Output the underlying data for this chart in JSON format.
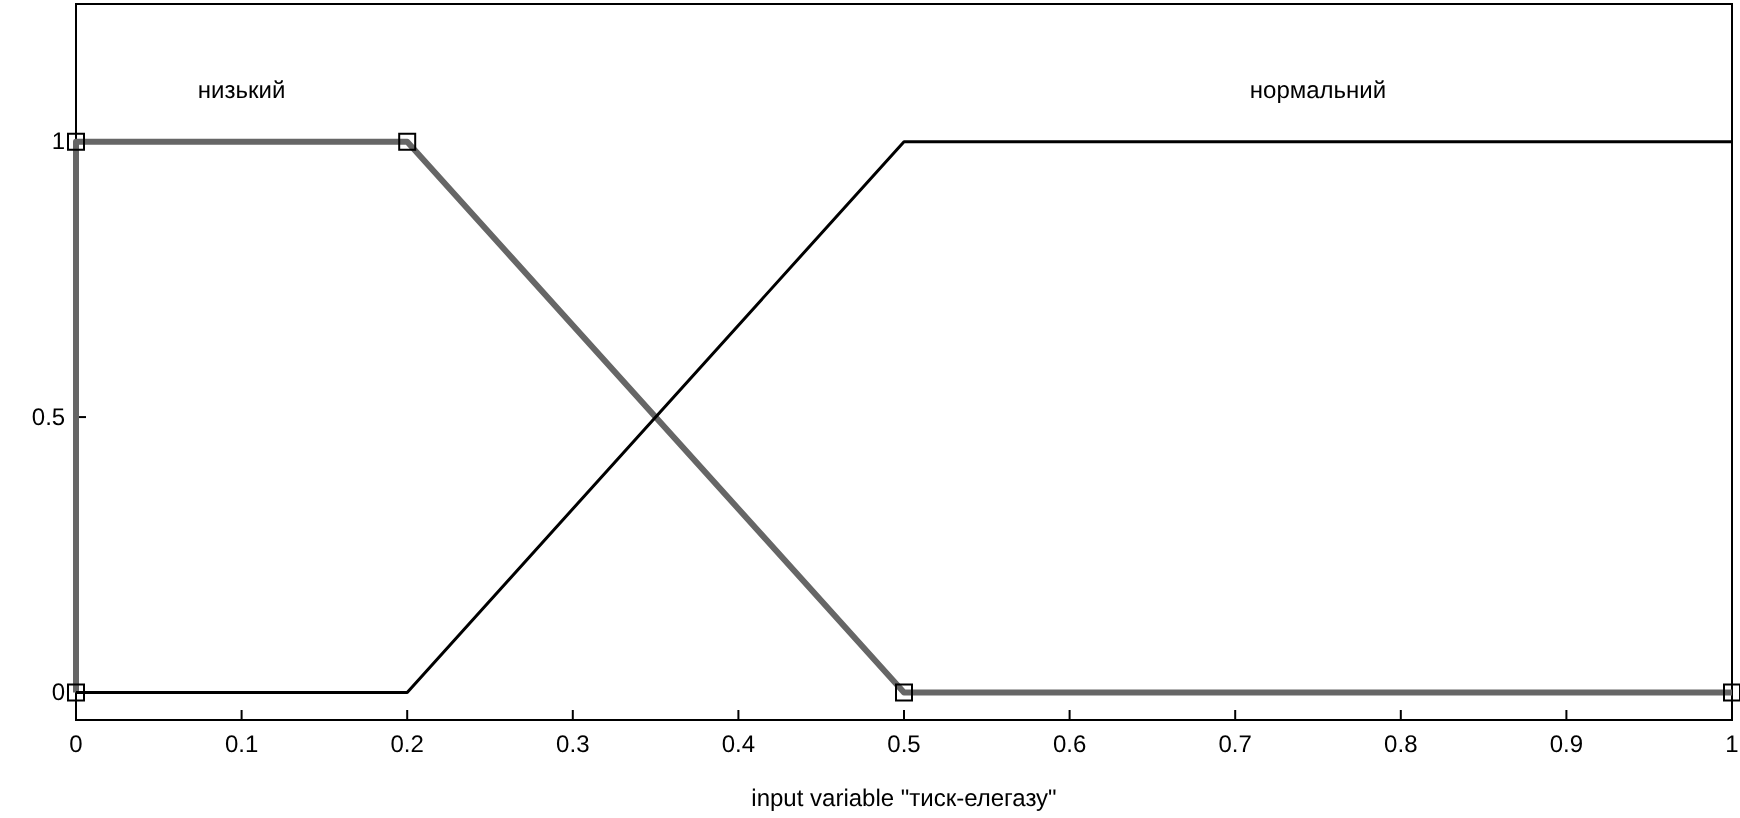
{
  "chart_data": {
    "type": "line",
    "xlabel": "input variable \"тиск-елегазу\"",
    "xlim": [
      0,
      1
    ],
    "ylim": [
      -0.05,
      1.25
    ],
    "xticks": [
      0,
      0.1,
      0.2,
      0.3,
      0.4,
      0.5,
      0.6,
      0.7,
      0.8,
      0.9,
      1
    ],
    "yticks": [
      0,
      0.5,
      1
    ],
    "grid": false,
    "legend": false,
    "series": [
      {
        "name": "низький",
        "color": "#666666",
        "x": [
          0,
          0,
          0.2,
          0.5,
          1
        ],
        "values": [
          0,
          1,
          1,
          0,
          0
        ],
        "marker": "square"
      },
      {
        "name": "нормальний",
        "color": "#000000",
        "x": [
          0,
          0.2,
          0.5,
          1
        ],
        "values": [
          0,
          0,
          1,
          1
        ],
        "marker": "none"
      }
    ]
  }
}
